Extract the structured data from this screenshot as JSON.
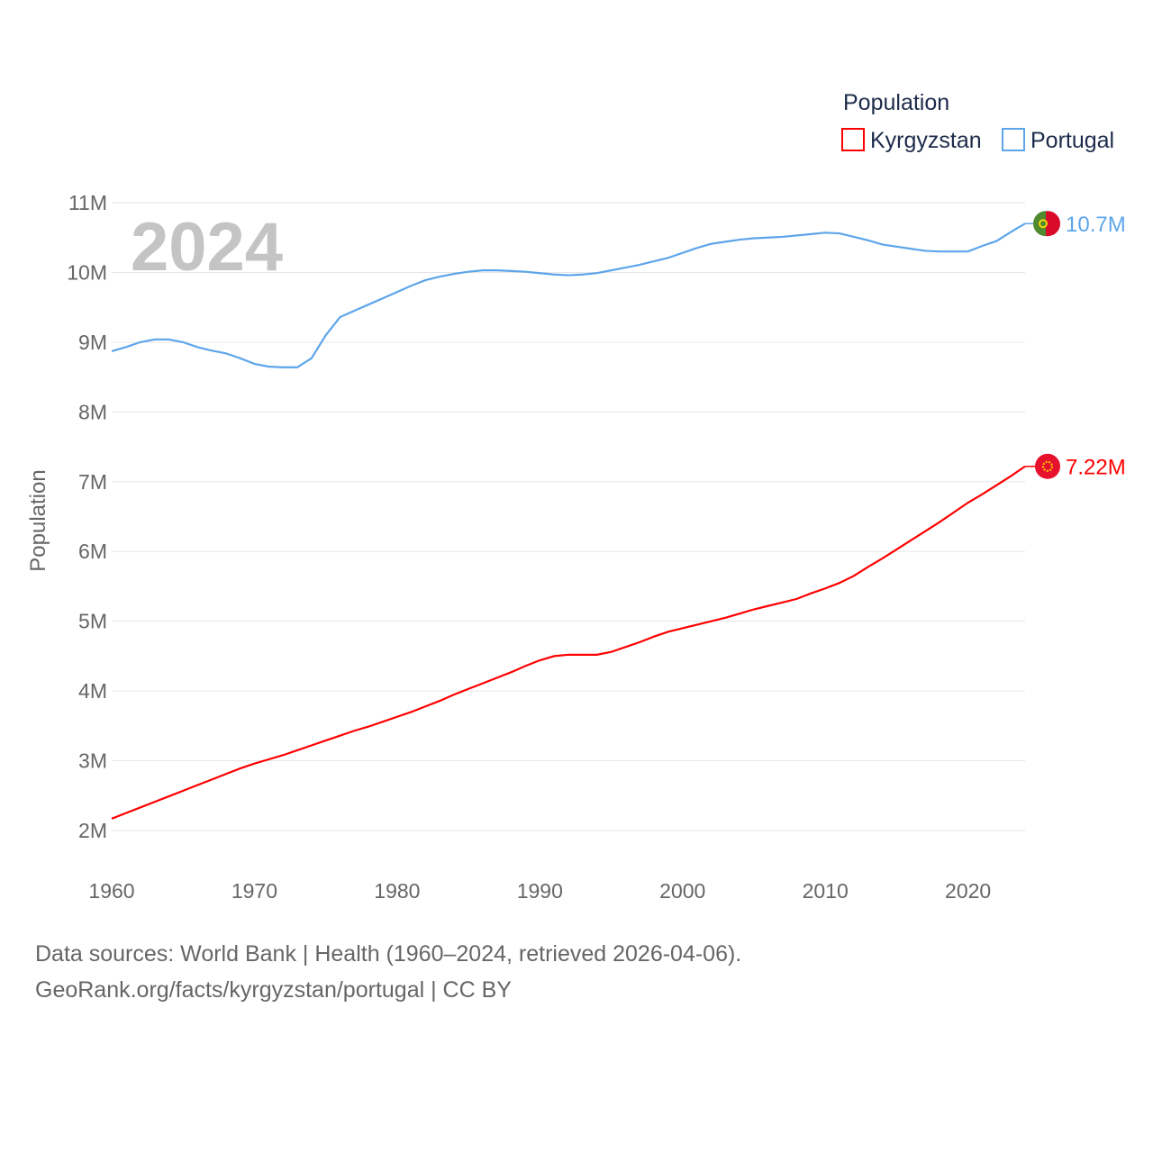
{
  "chart_data": {
    "type": "line",
    "title": "Population",
    "ylabel": "Population",
    "xlabel": "",
    "year_label": "2024",
    "xlim": [
      1960,
      2024
    ],
    "ylim": [
      2,
      11
    ],
    "y_unit": "M",
    "x_ticks": [
      "1960",
      "1970",
      "1980",
      "1990",
      "2000",
      "2010",
      "2020"
    ],
    "y_ticks": [
      "2M",
      "3M",
      "4M",
      "5M",
      "6M",
      "7M",
      "8M",
      "9M",
      "10M",
      "11M"
    ],
    "grid": true,
    "legend_position": "top-right",
    "x": [
      1960,
      1961,
      1962,
      1963,
      1964,
      1965,
      1966,
      1967,
      1968,
      1969,
      1970,
      1971,
      1972,
      1973,
      1974,
      1975,
      1976,
      1977,
      1978,
      1979,
      1980,
      1981,
      1982,
      1983,
      1984,
      1985,
      1986,
      1987,
      1988,
      1989,
      1990,
      1991,
      1992,
      1993,
      1994,
      1995,
      1996,
      1997,
      1998,
      1999,
      2000,
      2001,
      2002,
      2003,
      2004,
      2005,
      2006,
      2007,
      2008,
      2009,
      2010,
      2011,
      2012,
      2013,
      2014,
      2015,
      2016,
      2017,
      2018,
      2019,
      2020,
      2021,
      2022,
      2023,
      2024
    ],
    "series": [
      {
        "name": "Kyrgyzstan",
        "color": "#ff0000",
        "end_label": "7.22M",
        "values": [
          2.17,
          2.25,
          2.33,
          2.41,
          2.49,
          2.57,
          2.65,
          2.73,
          2.81,
          2.89,
          2.96,
          3.02,
          3.08,
          3.15,
          3.22,
          3.29,
          3.36,
          3.43,
          3.49,
          3.56,
          3.63,
          3.7,
          3.78,
          3.86,
          3.95,
          4.03,
          4.11,
          4.19,
          4.27,
          4.36,
          4.44,
          4.5,
          4.52,
          4.52,
          4.52,
          4.56,
          4.63,
          4.7,
          4.78,
          4.85,
          4.9,
          4.95,
          5.0,
          5.05,
          5.11,
          5.17,
          5.22,
          5.27,
          5.32,
          5.4,
          5.47,
          5.55,
          5.65,
          5.78,
          5.9,
          6.03,
          6.16,
          6.29,
          6.42,
          6.56,
          6.7,
          6.82,
          6.95,
          7.08,
          7.22
        ]
      },
      {
        "name": "Portugal",
        "color": "#5da5ea",
        "end_label": "10.7M",
        "values": [
          8.87,
          8.93,
          9.0,
          9.04,
          9.04,
          9.0,
          8.93,
          8.88,
          8.84,
          8.77,
          8.69,
          8.65,
          8.64,
          8.64,
          8.77,
          9.1,
          9.36,
          9.45,
          9.54,
          9.63,
          9.72,
          9.81,
          9.89,
          9.94,
          9.98,
          10.01,
          10.03,
          10.03,
          10.02,
          10.01,
          9.99,
          9.97,
          9.96,
          9.97,
          9.99,
          10.03,
          10.07,
          10.11,
          10.16,
          10.21,
          10.28,
          10.35,
          10.41,
          10.44,
          10.47,
          10.49,
          10.5,
          10.51,
          10.53,
          10.55,
          10.57,
          10.56,
          10.51,
          10.46,
          10.4,
          10.37,
          10.34,
          10.31,
          10.3,
          10.3,
          10.3,
          10.38,
          10.45,
          10.58,
          10.7
        ]
      }
    ]
  },
  "footer": {
    "line1": "Data sources: World Bank | Health (1960–2024, retrieved 2026-04-06).",
    "line2": "GeoRank.org/facts/kyrgyzstan/portugal | CC BY"
  }
}
